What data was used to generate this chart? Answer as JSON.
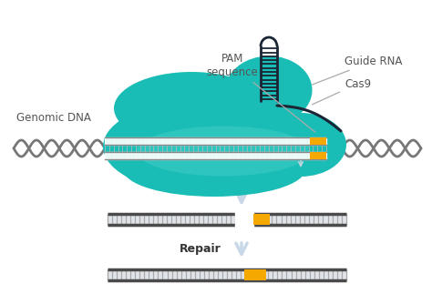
{
  "bg_color": "#ffffff",
  "teal": "#1abdb5",
  "teal_mid": "#0fa8a0",
  "navy": "#1a2535",
  "gray_dna": "#6b6b6b",
  "gray_rung": "#aaaaaa",
  "gray_light": "#cccccc",
  "yellow": "#f5a800",
  "white": "#ffffff",
  "arrow_color": "#c8d8e8",
  "arrow_outline": "#b0c0d0",
  "labels": {
    "pam": "PAM\nsequence",
    "guide_rna": "Guide RNA",
    "cas9": "Cas9",
    "genomic_dna": "Genomic DNA",
    "repair": "Repair"
  },
  "figsize": [
    4.74,
    3.34
  ],
  "dpi": 100
}
